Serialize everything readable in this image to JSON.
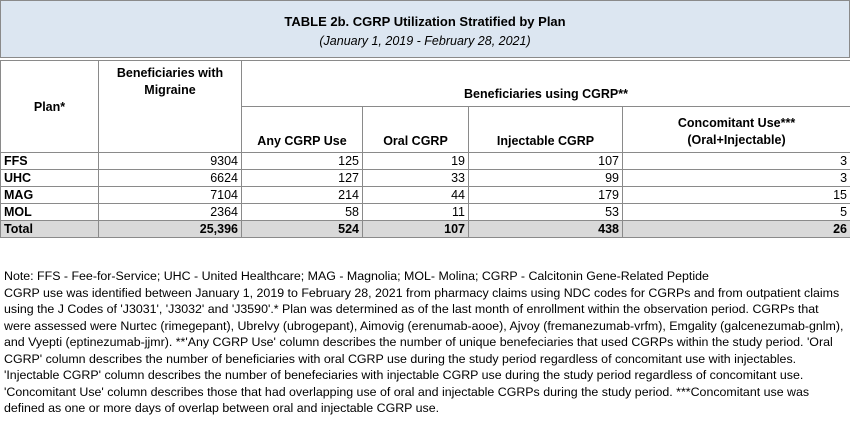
{
  "table_title": "TABLE 2b. CGRP Utilization Stratified by Plan",
  "table_subtitle": "(January 1, 2019 - February 28, 2021)",
  "headers": {
    "plan": "Plan*",
    "beneficiaries_migraine_line1": "Beneficiaries with",
    "beneficiaries_migraine_line2": "Migraine",
    "beneficiaries_cgrp": "Beneficiaries using CGRP**",
    "any_cgrp": "Any CGRP Use",
    "oral_cgrp": "Oral CGRP",
    "injectable_cgrp": "Injectable CGRP",
    "concomitant_line1": "Concomitant Use***",
    "concomitant_line2": "(Oral+Injectable)"
  },
  "rows": [
    {
      "plan": "FFS",
      "migraine": "9304",
      "any": "125",
      "oral": "19",
      "inject": "107",
      "concomitant": "3"
    },
    {
      "plan": "UHC",
      "migraine": "6624",
      "any": "127",
      "oral": "33",
      "inject": "99",
      "concomitant": "3"
    },
    {
      "plan": "MAG",
      "migraine": "7104",
      "any": "214",
      "oral": "44",
      "inject": "179",
      "concomitant": "15"
    },
    {
      "plan": "MOL",
      "migraine": "2364",
      "any": "58",
      "oral": "11",
      "inject": "53",
      "concomitant": "5"
    }
  ],
  "total": {
    "plan": "Total",
    "migraine": "25,396",
    "any": "524",
    "oral": "107",
    "inject": "438",
    "concomitant": "26"
  },
  "notes": {
    "line1": "Note: FFS - Fee-for-Service; UHC - United Healthcare; MAG - Magnolia; MOL- Molina;  CGRP - Calcitonin Gene-Related Peptide",
    "body": "CGRP use was identified between January 1, 2019 to February 28, 2021 from pharmacy claims using NDC codes for CGRPs and from outpatient claims using the J Codes of 'J3031', 'J3032' and 'J3590'.* Plan was determined as of the last month of enrollment within the observation period. CGRPs that were assessed were Nurtec (rimegepant), Ubrelvy (ubrogepant), Aimovig (erenumab-aooe), Ajvoy (fremanezumab-vrfm), Emgality (galcenezumab-gnlm), and Vyepti (eptinezumab-jjmr). **'Any CGRP Use' column describes the number of unique benefeciaries that used CGRPs within the study period. 'Oral CGRP' column describes the number of beneficiaries with oral CGRP use during the study period regardless of concomitant use with injectables. 'Injectable CGRP' column describes the number of benefeciaries with injectable CGRP use during the study period regardless of concomitant use. 'Concomitant Use' column describes those that had overlapping use of oral and injectable CGRPs during the study period. ***Concomitant use was defined as one or more days of overlap between oral and injectable CGRP use."
  }
}
